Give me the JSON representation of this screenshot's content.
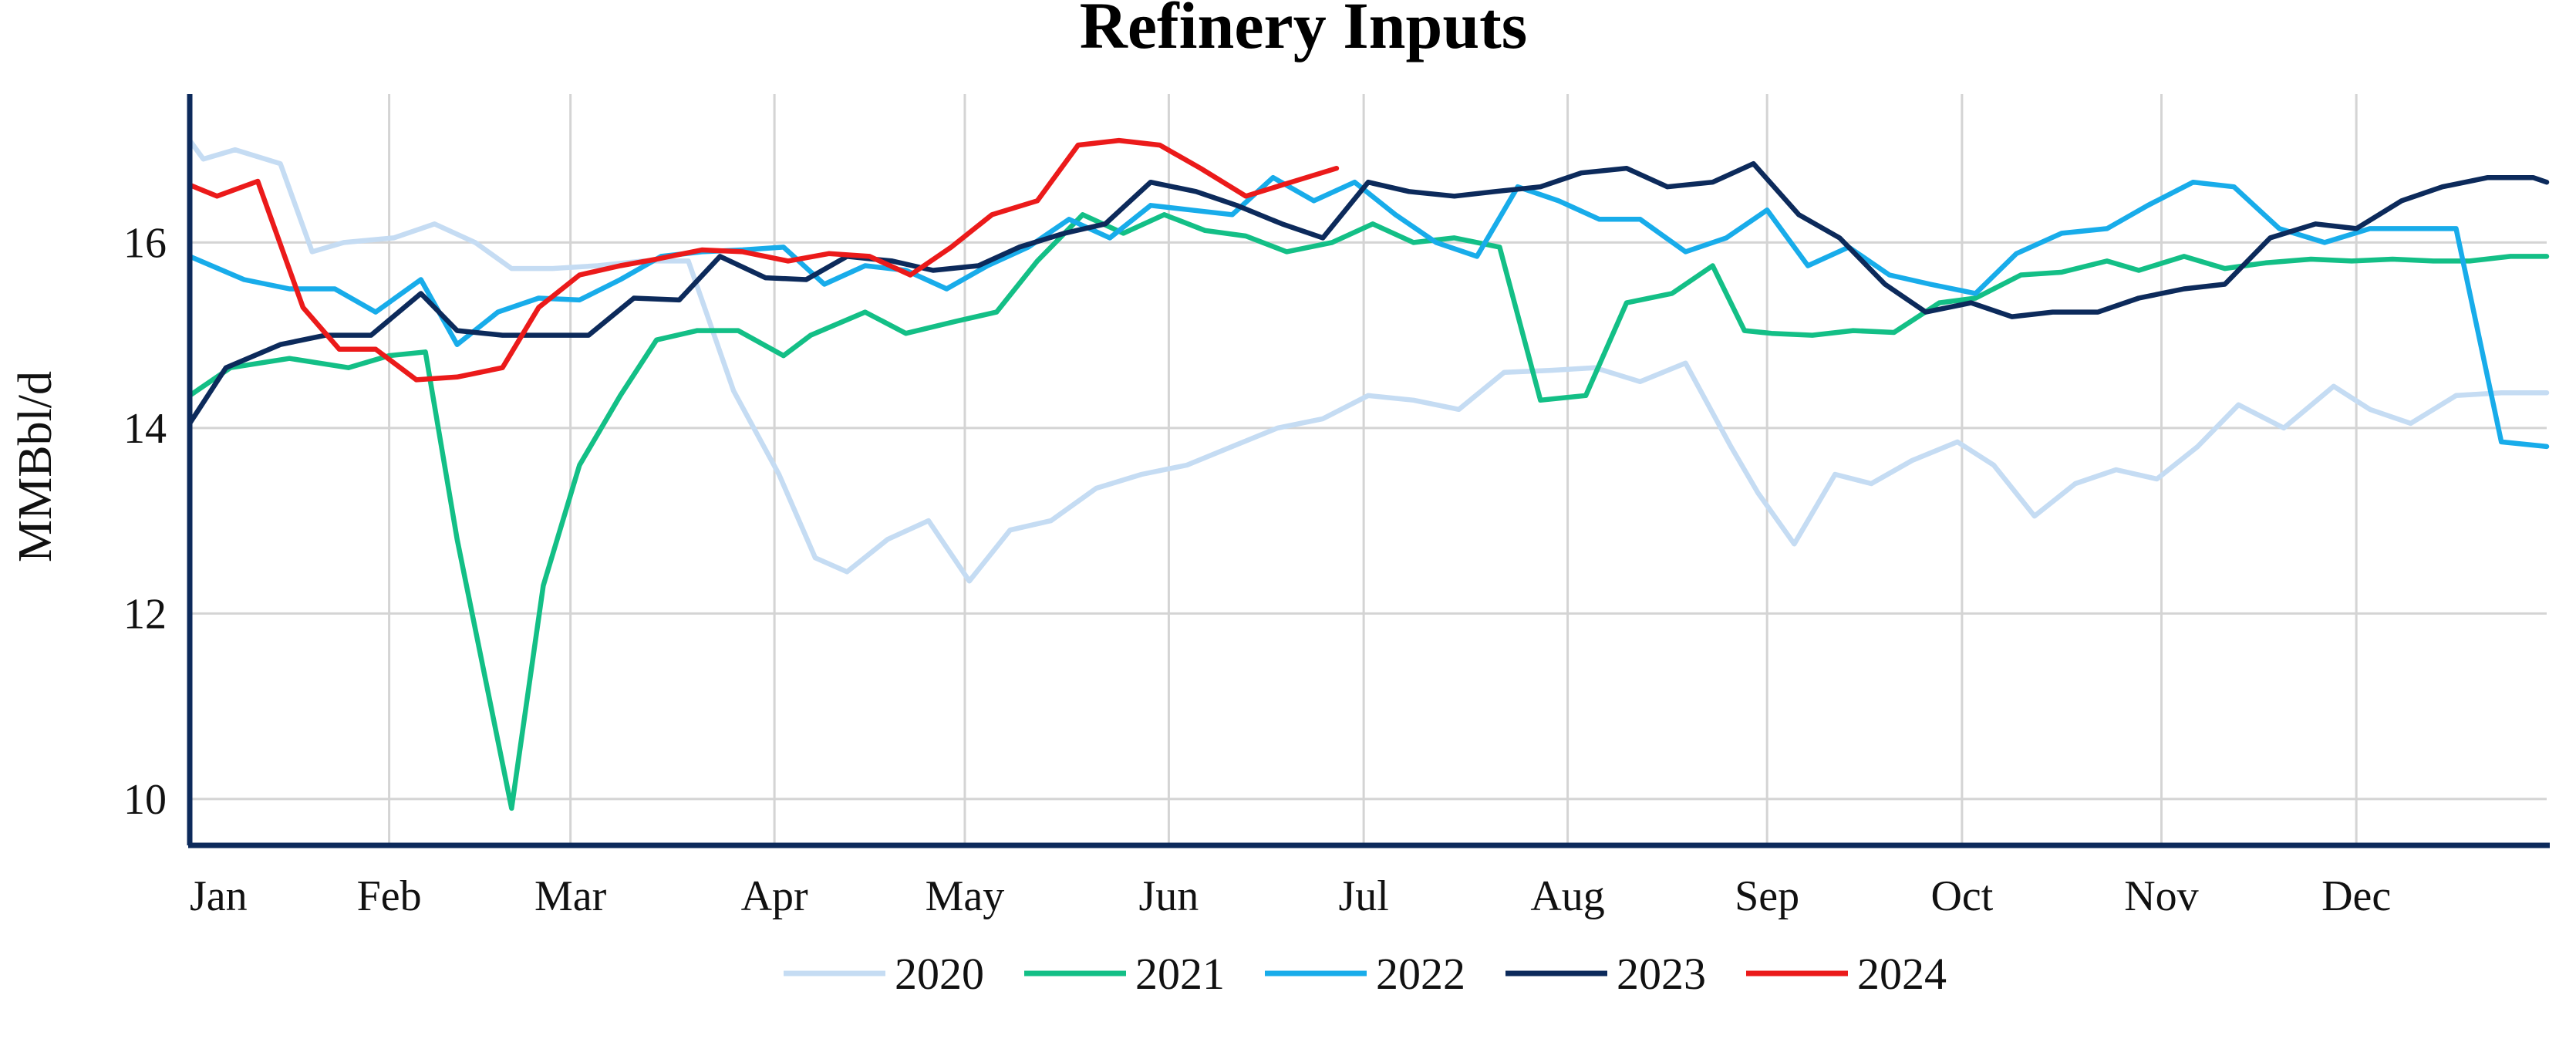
{
  "chart_data": {
    "type": "line",
    "title": "Refinery Inputs",
    "ylabel": "MMBbl/d",
    "xlabel": "",
    "ylim": [
      9.5,
      17.6
    ],
    "yticks": [
      10,
      12,
      14,
      16
    ],
    "xlim": [
      1,
      53
    ],
    "xtick_weeks": [
      1,
      5.4,
      9.4,
      13.9,
      18.1,
      22.6,
      26.9,
      31.4,
      35.8,
      40.1,
      44.5,
      48.8
    ],
    "xtick_labels": [
      "Jan",
      "Feb",
      "Mar",
      "Apr",
      "May",
      "Jun",
      "Jul",
      "Aug",
      "Sep",
      "Oct",
      "Nov",
      "Dec"
    ],
    "grid": true,
    "legend_position": "bottom",
    "series": [
      {
        "name": "2020",
        "color": "#c5dcf3",
        "x": [
          1,
          1.3,
          2,
          3,
          3.7,
          4.4,
          5.5,
          6.4,
          7.3,
          8.1,
          9,
          10,
          11,
          12,
          13,
          14,
          14.8,
          15.5,
          16.4,
          17.3,
          18.2,
          19.1,
          20,
          21,
          22,
          23,
          24,
          25,
          26,
          27,
          28,
          29,
          30,
          31,
          32,
          33,
          34,
          35,
          35.6,
          36.4,
          37.3,
          38.1,
          39,
          40,
          40.8,
          41.7,
          42.6,
          43.5,
          44.4,
          45.3,
          46.2,
          47.2,
          48.3,
          49.1,
          50,
          51,
          52,
          53
        ],
        "values": [
          17.1,
          16.9,
          17.0,
          16.85,
          15.9,
          16.0,
          16.05,
          16.2,
          16.0,
          15.72,
          15.72,
          15.75,
          15.8,
          15.8,
          14.4,
          13.5,
          12.6,
          12.45,
          12.8,
          13.0,
          12.35,
          12.9,
          13.0,
          13.35,
          13.5,
          13.6,
          13.8,
          14.0,
          14.1,
          14.35,
          14.3,
          14.2,
          14.6,
          14.62,
          14.65,
          14.5,
          14.7,
          13.8,
          13.3,
          12.75,
          13.5,
          13.4,
          13.65,
          13.85,
          13.6,
          13.05,
          13.4,
          13.55,
          13.45,
          13.8,
          14.25,
          14.0,
          14.45,
          14.2,
          14.05,
          14.35,
          14.38,
          14.38
        ]
      },
      {
        "name": "2021",
        "color": "#13bf86",
        "x": [
          1,
          1.9,
          3.2,
          4.5,
          5.4,
          6.2,
          6.9,
          8.1,
          8.8,
          9.6,
          10.5,
          11.3,
          12.2,
          13.1,
          14.1,
          14.7,
          15.9,
          16.8,
          17.9,
          18.8,
          19.7,
          20.7,
          21.6,
          22.5,
          23.4,
          24.3,
          25.2,
          26.2,
          27.1,
          28,
          28.9,
          29.9,
          30.8,
          31.8,
          32.7,
          33.7,
          34.6,
          35.3,
          35.9,
          36.8,
          37.7,
          38.6,
          39.6,
          40.4,
          41.4,
          42.3,
          43.3,
          44,
          45,
          45.9,
          46.8,
          47.8,
          48.7,
          49.6,
          50.5,
          51.3,
          52.2,
          53
        ],
        "values": [
          14.35,
          14.65,
          14.75,
          14.65,
          14.78,
          14.82,
          12.8,
          9.9,
          12.3,
          13.6,
          14.35,
          14.95,
          15.05,
          15.05,
          14.78,
          15.0,
          15.25,
          15.02,
          15.15,
          15.25,
          15.8,
          16.3,
          16.1,
          16.3,
          16.13,
          16.07,
          15.9,
          16.0,
          16.2,
          16.0,
          16.05,
          15.95,
          14.3,
          14.35,
          15.35,
          15.45,
          15.75,
          15.05,
          15.02,
          15.0,
          15.05,
          15.03,
          15.35,
          15.4,
          15.65,
          15.68,
          15.8,
          15.7,
          15.85,
          15.72,
          15.78,
          15.82,
          15.8,
          15.82,
          15.8,
          15.8,
          15.85,
          15.85
        ]
      },
      {
        "name": "2022",
        "color": "#18acea",
        "x": [
          1,
          2.2,
          3.2,
          4.2,
          5.1,
          6.1,
          6.9,
          7.8,
          8.7,
          9.6,
          10.5,
          11.4,
          12.3,
          13.2,
          14.1,
          15,
          15.9,
          16.8,
          17.7,
          18.6,
          19.5,
          20.4,
          21.3,
          22.2,
          23.1,
          24,
          24.9,
          25.8,
          26.7,
          27.6,
          28.5,
          29.4,
          30.3,
          31.2,
          32.1,
          33,
          34,
          34.9,
          35.8,
          36.7,
          37.6,
          38.5,
          39.4,
          40.4,
          41.3,
          42.3,
          43.3,
          44.2,
          45.2,
          46.1,
          47.1,
          48.1,
          49.1,
          50,
          51,
          52,
          53
        ],
        "values": [
          15.85,
          15.6,
          15.5,
          15.5,
          15.25,
          15.6,
          14.9,
          15.25,
          15.4,
          15.38,
          15.6,
          15.85,
          15.9,
          15.92,
          15.95,
          15.55,
          15.75,
          15.7,
          15.5,
          15.75,
          15.95,
          16.25,
          16.05,
          16.4,
          16.35,
          16.3,
          16.7,
          16.45,
          16.65,
          16.3,
          16.0,
          15.85,
          16.6,
          16.45,
          16.25,
          16.25,
          15.9,
          16.05,
          16.35,
          15.75,
          15.95,
          15.65,
          15.55,
          15.45,
          15.88,
          16.1,
          16.15,
          16.4,
          16.65,
          16.6,
          16.15,
          16.0,
          16.15,
          16.15,
          16.15,
          13.85,
          13.8
        ]
      },
      {
        "name": "2023",
        "color": "#0c2a5b",
        "x": [
          1,
          1.8,
          3,
          4,
          5,
          6.1,
          6.9,
          7.9,
          8.9,
          9.8,
          10.8,
          11.8,
          12.7,
          13.7,
          14.6,
          15.5,
          16.5,
          17.4,
          18.4,
          19.3,
          20.3,
          21.2,
          22.2,
          23.2,
          24.1,
          25.1,
          26,
          27,
          27.9,
          28.9,
          29.8,
          30.8,
          31.7,
          32.7,
          33.6,
          34.6,
          35.5,
          36.5,
          37.4,
          38.4,
          39.3,
          40.3,
          41.2,
          42.1,
          43.1,
          44,
          45,
          45.9,
          46.9,
          47.9,
          48.8,
          49.8,
          50.7,
          51.7,
          52.7,
          53
        ],
        "values": [
          14.05,
          14.65,
          14.9,
          15.0,
          15.0,
          15.45,
          15.05,
          15.0,
          15.0,
          15.0,
          15.4,
          15.38,
          15.85,
          15.62,
          15.6,
          15.85,
          15.8,
          15.7,
          15.75,
          15.95,
          16.1,
          16.2,
          16.65,
          16.55,
          16.4,
          16.2,
          16.05,
          16.65,
          16.55,
          16.5,
          16.55,
          16.6,
          16.75,
          16.8,
          16.6,
          16.65,
          16.85,
          16.3,
          16.05,
          15.55,
          15.25,
          15.35,
          15.2,
          15.25,
          15.25,
          15.4,
          15.5,
          15.55,
          16.05,
          16.2,
          16.15,
          16.45,
          16.6,
          16.7,
          16.7,
          16.65
        ]
      },
      {
        "name": "2024",
        "color": "#eb1a1a",
        "x": [
          1,
          1.6,
          2.5,
          3.5,
          4.3,
          5.1,
          6,
          6.9,
          7.9,
          8.7,
          9.6,
          10.5,
          11.3,
          12.3,
          13.2,
          14.2,
          15.1,
          16,
          16.9,
          17.8,
          18.7,
          19.7,
          20.6,
          21.5,
          22.4,
          23.3,
          24.3,
          25.3,
          26.3
        ],
        "values": [
          16.62,
          16.5,
          16.66,
          15.3,
          14.85,
          14.85,
          14.52,
          14.55,
          14.65,
          15.3,
          15.65,
          15.75,
          15.82,
          15.92,
          15.9,
          15.8,
          15.88,
          15.85,
          15.65,
          15.95,
          16.3,
          16.45,
          17.05,
          17.1,
          17.05,
          16.8,
          16.5,
          16.65,
          16.8
        ]
      }
    ]
  }
}
